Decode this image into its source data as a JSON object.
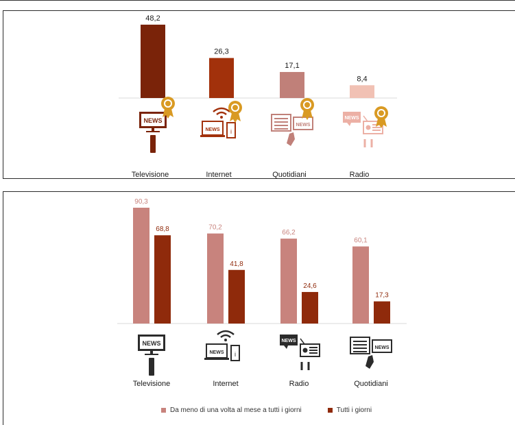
{
  "colors": {
    "tv_dark": "#7a2309",
    "internet": "#a2310b",
    "quotidiani": "#c08079",
    "radio_light": "#f1c1b4",
    "gold": "#d99a23",
    "series_monthly": "#c8837d",
    "series_daily": "#8f2a0b",
    "icon_dark": "#2b2b2b"
  },
  "chart_data": [
    {
      "type": "bar",
      "categories": [
        "Televisione",
        "Internet",
        "Quotidiani",
        "Radio"
      ],
      "values": [
        48.2,
        26.3,
        17.1,
        8.4
      ],
      "value_labels": [
        "48,2",
        "26,3",
        "17,1",
        "8,4"
      ],
      "bar_colors": [
        "#7a2309",
        "#a2310b",
        "#c08079",
        "#f1c1b4"
      ],
      "icons": [
        "tv-news-icon",
        "internet-news-icon",
        "newspaper-news-icon",
        "radio-news-icon"
      ],
      "ylim": [
        0,
        50
      ]
    },
    {
      "type": "bar",
      "categories": [
        "Televisione",
        "Internet",
        "Radio",
        "Quotidiani"
      ],
      "series": [
        {
          "name": "Da meno di una volta al mese a tutti i giorni",
          "values": [
            90.3,
            70.2,
            66.2,
            60.1
          ],
          "value_labels": [
            "90,3",
            "70,2",
            "66,2",
            "60,1"
          ],
          "color": "#c8837d"
        },
        {
          "name": "Tutti i giorni",
          "values": [
            68.8,
            41.8,
            24.6,
            17.3
          ],
          "value_labels": [
            "68,8",
            "41,8",
            "24,6",
            "17,3"
          ],
          "color": "#8f2a0b"
        }
      ],
      "icons": [
        "tv-news-icon",
        "internet-news-icon",
        "radio-news-icon",
        "newspaper-news-icon"
      ],
      "legend": "bottom",
      "ylim": [
        0,
        95
      ]
    }
  ]
}
